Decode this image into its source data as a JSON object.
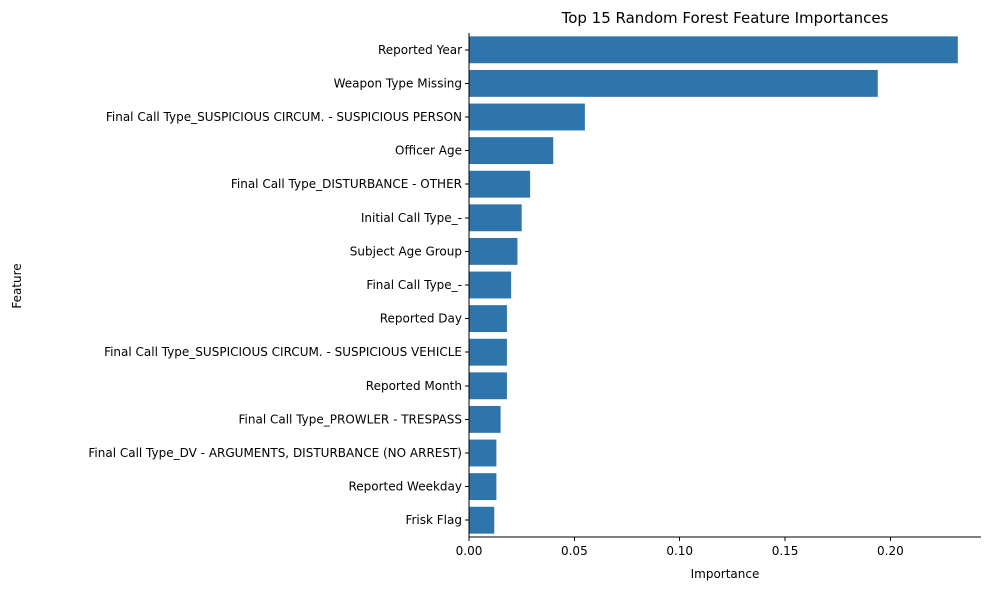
{
  "chart_data": {
    "type": "bar",
    "orientation": "horizontal",
    "title": "Top 15 Random Forest Feature Importances",
    "xlabel": "Importance",
    "ylabel": "Feature",
    "categories": [
      "Reported Year",
      "Weapon Type Missing",
      "Final Call Type_SUSPICIOUS CIRCUM. - SUSPICIOUS PERSON",
      "Officer Age",
      "Final Call Type_DISTURBANCE - OTHER",
      "Initial Call Type_-",
      "Subject Age Group",
      "Final Call Type_-",
      "Reported Day",
      "Final Call Type_SUSPICIOUS CIRCUM. - SUSPICIOUS VEHICLE",
      "Reported Month",
      "Final Call Type_PROWLER - TRESPASS",
      "Final Call Type_DV - ARGUMENTS, DISTURBANCE (NO ARREST)",
      "Reported Weekday",
      "Frisk Flag"
    ],
    "values": [
      0.232,
      0.194,
      0.055,
      0.04,
      0.029,
      0.025,
      0.023,
      0.02,
      0.018,
      0.018,
      0.018,
      0.015,
      0.013,
      0.013,
      0.012
    ],
    "xlim": [
      0,
      0.243
    ],
    "xticks": [
      0.0,
      0.05,
      0.1,
      0.15,
      0.2
    ],
    "xtick_labels": [
      "0.00",
      "0.05",
      "0.10",
      "0.15",
      "0.20"
    ],
    "grid": false,
    "bar_color": "#2e75ab"
  }
}
